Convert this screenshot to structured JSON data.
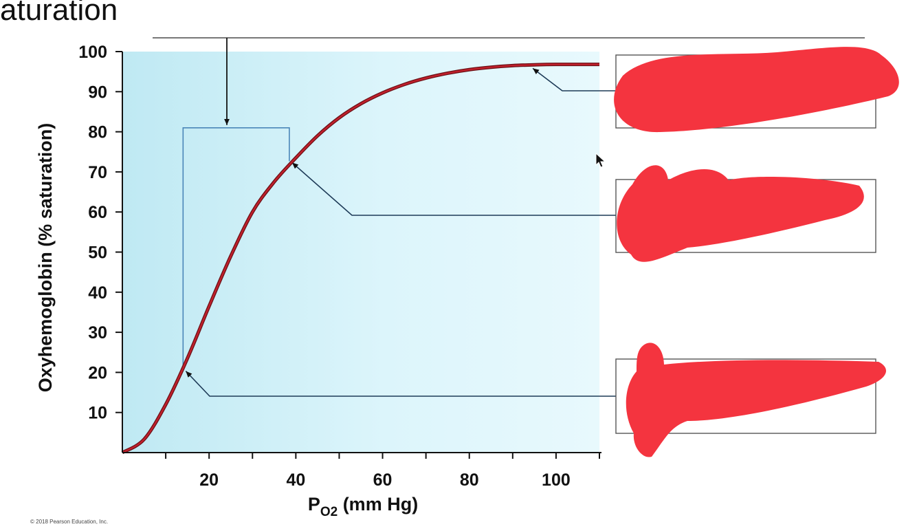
{
  "slide": {
    "title": "aturation",
    "copyright": "© 2018 Pearson Education, Inc."
  },
  "chart_data": {
    "type": "line",
    "title": "",
    "xlabel_main": "P",
    "xlabel_sub": "O2",
    "xlabel_unit": "(mm Hg)",
    "ylabel": "Oxyhemoglobin (% saturation)",
    "xlim": [
      0,
      110
    ],
    "ylim": [
      0,
      100
    ],
    "x_ticks": [
      20,
      40,
      60,
      80,
      100
    ],
    "y_ticks": [
      10,
      20,
      30,
      40,
      50,
      60,
      70,
      80,
      90,
      100
    ],
    "series": [
      {
        "x": [
          0,
          5,
          10,
          15,
          20,
          25,
          30,
          35,
          40,
          45,
          50,
          55,
          60,
          65,
          70,
          75,
          80,
          85,
          90,
          95,
          100,
          110
        ],
        "y": [
          0,
          3.3,
          12,
          23.5,
          36.5,
          49,
          60,
          67.5,
          73.5,
          79,
          83.5,
          87,
          89.7,
          91.8,
          93.4,
          94.6,
          95.5,
          96.1,
          96.5,
          96.7,
          96.8,
          96.8
        ],
        "color": "#c0202c"
      }
    ],
    "annotations": [
      {
        "label_redacted": true,
        "point": [
          14,
          21
        ]
      },
      {
        "label_redacted": true,
        "point": [
          38.5,
          73
        ]
      },
      {
        "label_redacted": true,
        "point": [
          94,
          96.5
        ]
      }
    ],
    "highlight_range": {
      "x": [
        14,
        38.5
      ],
      "y_top": 81
    },
    "background_color": "#dff5fb",
    "redaction_color": "#f4343f"
  }
}
